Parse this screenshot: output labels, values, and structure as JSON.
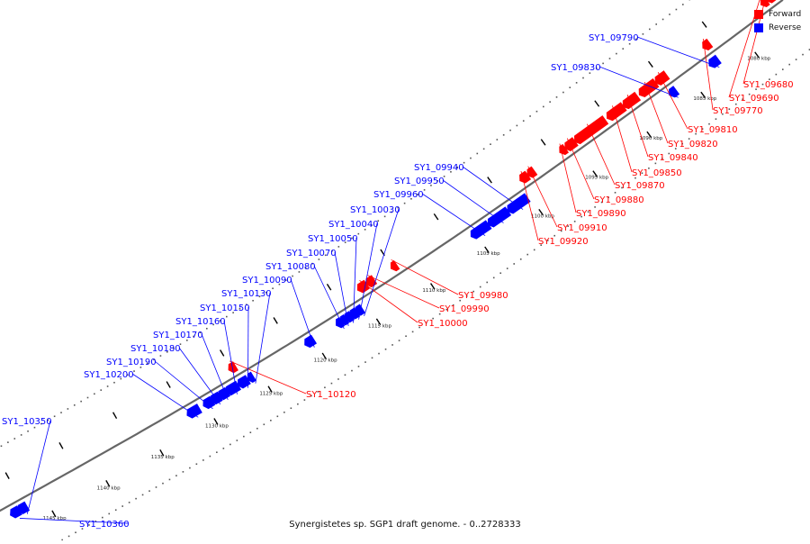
{
  "caption": "Synergistetes sp. SGP1 draft genome. - 0..2728333",
  "legend": [
    {
      "label": "Forward",
      "color": "#ff0000"
    },
    {
      "label": "Reverse",
      "color": "#0000ff"
    }
  ],
  "colors": {
    "forward": "#ff0000",
    "reverse": "#0000ff",
    "backbone": "#666666"
  },
  "ticks": [
    {
      "label": "1080 kbp",
      "kbp": 1080
    },
    {
      "label": "1085 kbp",
      "kbp": 1085
    },
    {
      "label": "1090 kbp",
      "kbp": 1090
    },
    {
      "label": "1095 kbp",
      "kbp": 1095
    },
    {
      "label": "1100 kbp",
      "kbp": 1100
    },
    {
      "label": "1105 kbp",
      "kbp": 1105
    },
    {
      "label": "1110 kbp",
      "kbp": 1110
    },
    {
      "label": "1115 kbp",
      "kbp": 1115
    },
    {
      "label": "1120 kbp",
      "kbp": 1120
    },
    {
      "label": "1125 kbp",
      "kbp": 1125
    },
    {
      "label": "1130 kbp",
      "kbp": 1130
    },
    {
      "label": "1135 kbp",
      "kbp": 1135
    },
    {
      "label": "1140 kbp",
      "kbp": 1140
    },
    {
      "label": "1145 kbp",
      "kbp": 1145
    }
  ],
  "genes": [
    {
      "id": "SY1_09680",
      "strand": "forward",
      "start_kbp": 1076.3,
      "end_kbp": 1076.8
    },
    {
      "id": "SY1_09690",
      "strand": "forward",
      "start_kbp": 1077.0,
      "end_kbp": 1077.3
    },
    {
      "id": "SY1_09770",
      "strand": "forward",
      "start_kbp": 1082.3,
      "end_kbp": 1082.7
    },
    {
      "id": "SY1_09790",
      "strand": "reverse",
      "start_kbp": 1082.5,
      "end_kbp": 1083.1
    },
    {
      "id": "SY1_09810",
      "strand": "forward",
      "start_kbp": 1086.3,
      "end_kbp": 1087.1
    },
    {
      "id": "SY1_09820",
      "strand": "forward",
      "start_kbp": 1087.3,
      "end_kbp": 1088.6
    },
    {
      "id": "SY1_09830",
      "strand": "reverse",
      "start_kbp": 1086.4,
      "end_kbp": 1086.8
    },
    {
      "id": "SY1_09840",
      "strand": "forward",
      "start_kbp": 1089.0,
      "end_kbp": 1090.1
    },
    {
      "id": "SY1_09850",
      "strand": "forward",
      "start_kbp": 1090.3,
      "end_kbp": 1091.6
    },
    {
      "id": "SY1_09870",
      "strand": "forward",
      "start_kbp": 1092.0,
      "end_kbp": 1094.6
    },
    {
      "id": "SY1_09880",
      "strand": "forward",
      "start_kbp": 1094.8,
      "end_kbp": 1095.5
    },
    {
      "id": "SY1_09890",
      "strand": "forward",
      "start_kbp": 1095.7,
      "end_kbp": 1096.0
    },
    {
      "id": "SY1_09910",
      "strand": "forward",
      "start_kbp": 1098.6,
      "end_kbp": 1099.0
    },
    {
      "id": "SY1_09920",
      "strand": "forward",
      "start_kbp": 1099.2,
      "end_kbp": 1099.7
    },
    {
      "id": "SY1_09940",
      "strand": "reverse",
      "start_kbp": 1100.2,
      "end_kbp": 1101.8
    },
    {
      "id": "SY1_09950",
      "strand": "reverse",
      "start_kbp": 1102.0,
      "end_kbp": 1103.6
    },
    {
      "id": "SY1_09960",
      "strand": "reverse",
      "start_kbp": 1103.8,
      "end_kbp": 1105.2
    },
    {
      "id": "SY1_09980",
      "strand": "forward",
      "start_kbp": 1111.4,
      "end_kbp": 1111.7
    },
    {
      "id": "SY1_09990",
      "strand": "forward",
      "start_kbp": 1113.5,
      "end_kbp": 1114.0
    },
    {
      "id": "SY1_10000",
      "strand": "forward",
      "start_kbp": 1114.2,
      "end_kbp": 1114.8
    },
    {
      "id": "SY1_10030",
      "strand": "reverse",
      "start_kbp": 1115.5,
      "end_kbp": 1115.9
    },
    {
      "id": "SY1_10040",
      "strand": "reverse",
      "start_kbp": 1116.0,
      "end_kbp": 1116.4
    },
    {
      "id": "SY1_10050",
      "strand": "reverse",
      "start_kbp": 1116.5,
      "end_kbp": 1116.9
    },
    {
      "id": "SY1_10070",
      "strand": "reverse",
      "start_kbp": 1117.0,
      "end_kbp": 1117.3
    },
    {
      "id": "SY1_10080",
      "strand": "reverse",
      "start_kbp": 1117.4,
      "end_kbp": 1117.7
    },
    {
      "id": "SY1_10090",
      "strand": "reverse",
      "start_kbp": 1120.0,
      "end_kbp": 1120.6
    },
    {
      "id": "SY1_10120",
      "strand": "forward",
      "start_kbp": 1126.4,
      "end_kbp": 1126.8
    },
    {
      "id": "SY1_10130",
      "strand": "reverse",
      "start_kbp": 1125.6,
      "end_kbp": 1125.9
    },
    {
      "id": "SY1_10150",
      "strand": "reverse",
      "start_kbp": 1126.1,
      "end_kbp": 1126.8
    },
    {
      "id": "SY1_10160",
      "strand": "reverse",
      "start_kbp": 1127.0,
      "end_kbp": 1127.9
    },
    {
      "id": "SY1_10170",
      "strand": "reverse",
      "start_kbp": 1128.0,
      "end_kbp": 1128.6
    },
    {
      "id": "SY1_10180",
      "strand": "reverse",
      "start_kbp": 1128.7,
      "end_kbp": 1129.3
    },
    {
      "id": "SY1_10190",
      "strand": "reverse",
      "start_kbp": 1129.4,
      "end_kbp": 1130.0
    },
    {
      "id": "SY1_10200",
      "strand": "reverse",
      "start_kbp": 1130.6,
      "end_kbp": 1131.5
    },
    {
      "id": "SY1_10350",
      "strand": "reverse",
      "start_kbp": 1146.6,
      "end_kbp": 1147.2
    },
    {
      "id": "SY1_10360",
      "strand": "reverse",
      "start_kbp": 1147.3,
      "end_kbp": 1147.9
    }
  ]
}
